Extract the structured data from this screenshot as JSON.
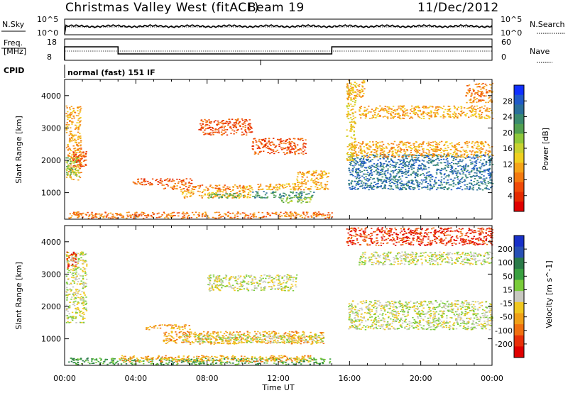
{
  "header": {
    "title": "Christmas Valley West (fitACF)",
    "beam": "Beam 19",
    "date": "11/Dec/2012"
  },
  "strips": {
    "nsky_label": "N.Sky",
    "nsearch_label": "N.Search",
    "noise_ticks": [
      "10^5",
      "10^0"
    ],
    "noise_right_ticks": [
      "10^5",
      "10^0"
    ],
    "freq_label_1": "Freq.",
    "freq_label_2": "[MHz]",
    "freq_ticks": [
      "18",
      "8"
    ],
    "nave_label": "Nave",
    "nave_ticks": [
      "60",
      "0"
    ],
    "cpid_label": "CPID",
    "cpid_value": "normal (fast) 151 IF",
    "freq_series": {
      "x": [
        0,
        3.0,
        3.0,
        15.0,
        15.0,
        24
      ],
      "y": [
        14.6,
        14.6,
        10.6,
        10.6,
        14.6,
        14.6
      ],
      "dotted": 12.2,
      "ylim": [
        7,
        19
      ]
    },
    "noise_series": {
      "level": 0.55,
      "dotted": 0.5
    }
  },
  "chart_data": [
    {
      "type": "heatmap",
      "name": "power",
      "ylabel": "Slant Range [km]",
      "xlabel": "",
      "xlim": [
        0,
        24
      ],
      "ylim": [
        180,
        4500
      ],
      "yticks": [
        "4000",
        "3000",
        "2000",
        "1000"
      ],
      "yticks_values": [
        4000,
        3000,
        2000,
        1000
      ],
      "colorbar": {
        "label": "Power [dB]",
        "ticks": [
          "28",
          "24",
          "20",
          "16",
          "12",
          "8",
          "4"
        ],
        "values": [
          28,
          24,
          20,
          16,
          12,
          8,
          4
        ],
        "range": [
          0,
          32
        ],
        "colors": [
          "#1030ff",
          "#205ac8",
          "#2a6f9a",
          "#3a8a6e",
          "#52a050",
          "#8fc83a",
          "#c8d230",
          "#f0d020",
          "#f6a418",
          "#f47a10",
          "#f04a08",
          "#e62a00",
          "#e00000"
        ]
      },
      "regions": [
        {
          "x": [
            0.05,
            0.9
          ],
          "y": [
            1400,
            3700
          ],
          "v": 12
        },
        {
          "x": [
            0.05,
            0.8
          ],
          "y": [
            1500,
            2100
          ],
          "v": 20
        },
        {
          "x": [
            0.4,
            1.2
          ],
          "y": [
            1800,
            2400
          ],
          "v": 6
        },
        {
          "x": [
            3.8,
            7.2
          ],
          "y": [
            1250,
            1450
          ],
          "v": 6
        },
        {
          "x": [
            5.5,
            10.0
          ],
          "y": [
            1100,
            1250
          ],
          "v": 8
        },
        {
          "x": [
            6.5,
            10.5
          ],
          "y": [
            850,
            1100
          ],
          "v": 12
        },
        {
          "x": [
            8.0,
            10.0
          ],
          "y": [
            850,
            1000
          ],
          "v": 22
        },
        {
          "x": [
            10.5,
            14.0
          ],
          "y": [
            850,
            1050
          ],
          "v": 24
        },
        {
          "x": [
            12.0,
            13.8
          ],
          "y": [
            700,
            900
          ],
          "v": 18
        },
        {
          "x": [
            9.5,
            14.8
          ],
          "y": [
            1100,
            1300
          ],
          "v": 10
        },
        {
          "x": [
            13.0,
            14.8
          ],
          "y": [
            1300,
            1700
          ],
          "v": 12
        },
        {
          "x": [
            7.5,
            10.5
          ],
          "y": [
            2800,
            3300
          ],
          "v": 6
        },
        {
          "x": [
            10.5,
            13.5
          ],
          "y": [
            2200,
            2700
          ],
          "v": 6
        },
        {
          "x": [
            0.2,
            15.0
          ],
          "y": [
            220,
            420
          ],
          "v": 8
        },
        {
          "x": [
            15.9,
            24.0
          ],
          "y": [
            1100,
            2200
          ],
          "v": 26
        },
        {
          "x": [
            16.0,
            24.0
          ],
          "y": [
            2100,
            2600
          ],
          "v": 12
        },
        {
          "x": [
            16.5,
            24.0
          ],
          "y": [
            3300,
            3700
          ],
          "v": 12
        },
        {
          "x": [
            15.8,
            16.8
          ],
          "y": [
            3900,
            4500
          ],
          "v": 10
        },
        {
          "x": [
            22.5,
            24.0
          ],
          "y": [
            3800,
            4400
          ],
          "v": 8
        },
        {
          "x": [
            15.8,
            16.3
          ],
          "y": [
            2000,
            4400
          ],
          "v": 14
        }
      ]
    },
    {
      "type": "heatmap",
      "name": "velocity",
      "ylabel": "Slant Range [km]",
      "xlabel": "Time UT",
      "xlim": [
        0,
        24
      ],
      "ylim": [
        180,
        4500
      ],
      "xticks": [
        "00:00",
        "04:00",
        "08:00",
        "12:00",
        "16:00",
        "20:00",
        "00:00"
      ],
      "yticks": [
        "4000",
        "3000",
        "2000",
        "1000"
      ],
      "yticks_values": [
        4000,
        3000,
        2000,
        1000
      ],
      "colorbar": {
        "label": "Velocity [m s^-1]",
        "ticks": [
          "200",
          "100",
          "50",
          "15",
          "-15",
          "-50",
          "-100",
          "-200"
        ],
        "colors": [
          "#1830c8",
          "#2850b4",
          "#2a7a48",
          "#3aa040",
          "#7acc3a",
          "#c8c8c0",
          "#f0c820",
          "#f0a018",
          "#f07010",
          "#e83008",
          "#e00000"
        ]
      },
      "regions": [
        {
          "x": [
            0.05,
            1.2
          ],
          "y": [
            1500,
            3700
          ],
          "v": 5
        },
        {
          "x": [
            0.05,
            0.6
          ],
          "y": [
            3200,
            3700
          ],
          "v": 9
        },
        {
          "x": [
            4.5,
            7.0
          ],
          "y": [
            1300,
            1450
          ],
          "v": 7
        },
        {
          "x": [
            5.5,
            14.5
          ],
          "y": [
            850,
            1250
          ],
          "v": 7
        },
        {
          "x": [
            6.5,
            14.5
          ],
          "y": [
            900,
            1150
          ],
          "v": 5
        },
        {
          "x": [
            0.2,
            15.0
          ],
          "y": [
            220,
            420
          ],
          "v": 3
        },
        {
          "x": [
            3.0,
            14.0
          ],
          "y": [
            300,
            500
          ],
          "v": 7
        },
        {
          "x": [
            15.9,
            24.0
          ],
          "y": [
            1300,
            2200
          ],
          "v": 5
        },
        {
          "x": [
            16.5,
            24.0
          ],
          "y": [
            3300,
            3700
          ],
          "v": 5
        },
        {
          "x": [
            15.8,
            24.0
          ],
          "y": [
            3900,
            4450
          ],
          "v": 9
        },
        {
          "x": [
            8.0,
            13.0
          ],
          "y": [
            2500,
            3000
          ],
          "v": 5
        }
      ]
    }
  ]
}
